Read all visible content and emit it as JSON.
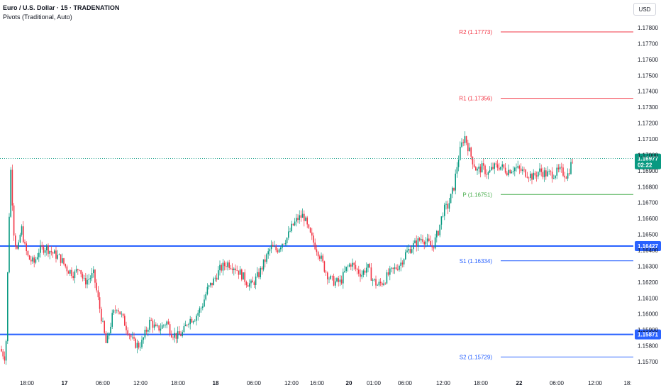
{
  "header": {
    "title": "Euro / U.S. Dollar · 15 · TRADENATION",
    "subtitle": "Pivots (Traditional, Auto)"
  },
  "currency_button": "USD",
  "colors": {
    "up": "#089981",
    "down": "#f23645",
    "resistance": "#f23645",
    "pivot": "#4caf50",
    "support": "#2962ff",
    "level_line": "#2962ff",
    "current_price": "#089981"
  },
  "chart_data": {
    "type": "candlestick",
    "title": "Euro / U.S. Dollar · 15 · TRADENATION",
    "ylim": [
      1.1565,
      1.1785
    ],
    "y_ticks": [
      "1.17800",
      "1.17700",
      "1.17600",
      "1.17500",
      "1.17400",
      "1.17300",
      "1.17200",
      "1.17100",
      "1.17000",
      "1.16900",
      "1.16800",
      "1.16700",
      "1.16600",
      "1.16500",
      "1.16400",
      "1.16300",
      "1.16200",
      "1.16100",
      "1.16000",
      "1.15900",
      "1.15800",
      "1.15700"
    ],
    "x_ticks": [
      {
        "label": "18:00",
        "bold": false
      },
      {
        "label": "17",
        "bold": true
      },
      {
        "label": "06:00",
        "bold": false
      },
      {
        "label": "12:00",
        "bold": false
      },
      {
        "label": "18:00",
        "bold": false
      },
      {
        "label": "18",
        "bold": true
      },
      {
        "label": "06:00",
        "bold": false
      },
      {
        "label": "12:00",
        "bold": false
      },
      {
        "label": "16:00",
        "bold": false
      },
      {
        "label": "20",
        "bold": true
      },
      {
        "label": "01:00",
        "bold": false
      },
      {
        "label": "06:00",
        "bold": false
      },
      {
        "label": "12:00",
        "bold": false
      },
      {
        "label": "18:00",
        "bold": false
      },
      {
        "label": "22",
        "bold": true
      },
      {
        "label": "06:00",
        "bold": false
      },
      {
        "label": "12:00",
        "bold": false
      },
      {
        "label": "18:"
      }
    ],
    "price_path": [
      [
        0,
        1.1578
      ],
      [
        8,
        1.1572
      ],
      [
        12,
        1.1648
      ],
      [
        15,
        1.1692
      ],
      [
        20,
        1.1648
      ],
      [
        25,
        1.1638
      ],
      [
        30,
        1.1655
      ],
      [
        35,
        1.1642
      ],
      [
        40,
        1.1635
      ],
      [
        48,
        1.1632
      ],
      [
        55,
        1.164
      ],
      [
        65,
        1.1642
      ],
      [
        75,
        1.1638
      ],
      [
        85,
        1.1635
      ],
      [
        95,
        1.1628
      ],
      [
        105,
        1.1625
      ],
      [
        112,
        1.163
      ],
      [
        118,
        1.162
      ],
      [
        125,
        1.1622
      ],
      [
        132,
        1.1625
      ],
      [
        138,
        1.161
      ],
      [
        144,
        1.1595
      ],
      [
        150,
        1.158
      ],
      [
        158,
        1.1598
      ],
      [
        165,
        1.1605
      ],
      [
        172,
        1.1598
      ],
      [
        180,
        1.159
      ],
      [
        188,
        1.1582
      ],
      [
        195,
        1.158
      ],
      [
        200,
        1.1582
      ],
      [
        205,
        1.1588
      ],
      [
        212,
        1.1596
      ],
      [
        220,
        1.159
      ],
      [
        228,
        1.1592
      ],
      [
        235,
        1.1595
      ],
      [
        242,
        1.1588
      ],
      [
        250,
        1.1586
      ],
      [
        258,
        1.1588
      ],
      [
        265,
        1.1596
      ],
      [
        275,
        1.1598
      ],
      [
        285,
        1.1605
      ],
      [
        292,
        1.1615
      ],
      [
        300,
        1.162
      ],
      [
        310,
        1.1628
      ],
      [
        320,
        1.1632
      ],
      [
        330,
        1.163
      ],
      [
        340,
        1.1625
      ],
      [
        348,
        1.162
      ],
      [
        355,
        1.1618
      ],
      [
        365,
        1.1625
      ],
      [
        375,
        1.1635
      ],
      [
        382,
        1.1642
      ],
      [
        390,
        1.164
      ],
      [
        398,
        1.1645
      ],
      [
        405,
        1.1648
      ],
      [
        412,
        1.1655
      ],
      [
        420,
        1.166
      ],
      [
        428,
        1.1662
      ],
      [
        435,
        1.1652
      ],
      [
        442,
        1.1645
      ],
      [
        450,
        1.1638
      ],
      [
        458,
        1.1628
      ],
      [
        465,
        1.1622
      ],
      [
        472,
        1.162
      ],
      [
        480,
        1.162
      ],
      [
        488,
        1.1628
      ],
      [
        495,
        1.1632
      ],
      [
        502,
        1.1628
      ],
      [
        510,
        1.1625
      ],
      [
        518,
        1.163
      ],
      [
        525,
        1.1622
      ],
      [
        532,
        1.1618
      ],
      [
        540,
        1.162
      ],
      [
        548,
        1.1625
      ],
      [
        556,
        1.1628
      ],
      [
        565,
        1.1632
      ],
      [
        572,
        1.1638
      ],
      [
        580,
        1.1642
      ],
      [
        588,
        1.1645
      ],
      [
        595,
        1.1648
      ],
      [
        602,
        1.1645
      ],
      [
        610,
        1.1642
      ],
      [
        618,
        1.1652
      ],
      [
        625,
        1.1665
      ],
      [
        632,
        1.1668
      ],
      [
        640,
        1.168
      ],
      [
        645,
        1.1695
      ],
      [
        650,
        1.1705
      ],
      [
        655,
        1.1712
      ],
      [
        660,
        1.1705
      ],
      [
        665,
        1.1698
      ],
      [
        672,
        1.169
      ],
      [
        680,
        1.1692
      ],
      [
        688,
        1.1688
      ],
      [
        695,
        1.1692
      ],
      [
        705,
        1.1693
      ],
      [
        715,
        1.169
      ],
      [
        725,
        1.1692
      ],
      [
        735,
        1.169
      ],
      [
        745,
        1.1688
      ],
      [
        752,
        1.1686
      ],
      [
        760,
        1.169
      ],
      [
        770,
        1.1688
      ],
      [
        780,
        1.1688
      ],
      [
        790,
        1.169
      ],
      [
        800,
        1.1687
      ],
      [
        808,
        1.1698
      ]
    ],
    "pivots": [
      {
        "name": "R2",
        "label": "R2 (1.17773)",
        "value": 1.17773,
        "kind": "resistance"
      },
      {
        "name": "R1",
        "label": "R1 (1.17356)",
        "value": 1.17356,
        "kind": "resistance"
      },
      {
        "name": "P",
        "label": "P (1.16751)",
        "value": 1.16751,
        "kind": "pivot"
      },
      {
        "name": "S1",
        "label": "S1 (1.16334)",
        "value": 1.16334,
        "kind": "support"
      },
      {
        "name": "S2",
        "label": "S2 (1.15729)",
        "value": 1.15729,
        "kind": "support"
      }
    ],
    "horizontal_levels": [
      {
        "value": 1.16427,
        "label": "1.16427"
      },
      {
        "value": 1.15871,
        "label": "1.15871"
      }
    ],
    "current_price": {
      "value": 1.16977,
      "label": "1.16977",
      "countdown": "02:22"
    }
  }
}
